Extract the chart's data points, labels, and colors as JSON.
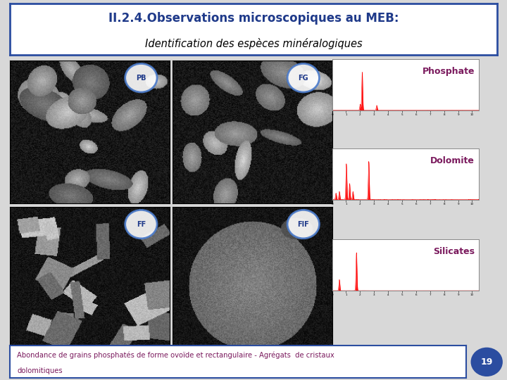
{
  "title_line1": "II.2.4.Observations microscopiques au MEB:",
  "title_line2": "Identification des espèces minéralogiques",
  "title_color1": "#1F3A8A",
  "title_color2": "#000000",
  "bg_color": "#D8D8D8",
  "header_bg": "#FFFFFF",
  "header_border": "#2B4DA0",
  "footer_text_line1": "Abondance de grains phosphatés de forme ovoïde et rectangulaire - Agrégats  de cristaux",
  "footer_text_line2": "dolomitiques",
  "footer_text_color": "#7B1B5E",
  "footer_bg": "#FFFFFF",
  "footer_border": "#2B4DA0",
  "labels": [
    "PB",
    "FG",
    "FF",
    "FIF"
  ],
  "label_circle_edge": "#4A7ACA",
  "label_text_color": "#1F3A8A",
  "mineral_labels": [
    "Phosphate",
    "Dolomite",
    "Silicates"
  ],
  "mineral_label_color": "#7B1B5E",
  "page_number": "19",
  "page_number_bg": "#2B4DA0",
  "page_number_color": "#FFFFFF",
  "spec_bg": "#FFFFFF",
  "spec_border": "#888888"
}
